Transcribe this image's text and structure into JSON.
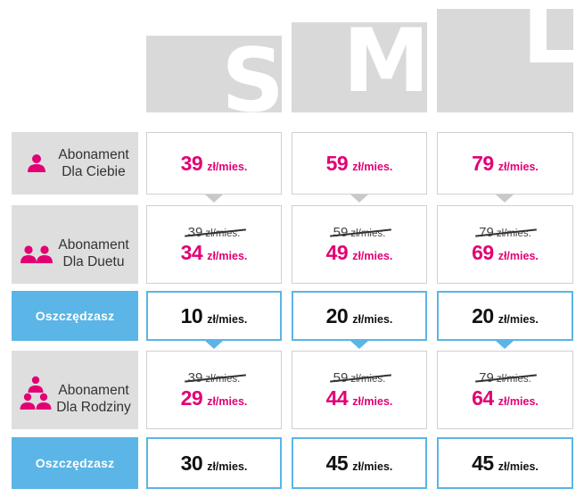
{
  "plans": [
    {
      "letter": "S"
    },
    {
      "letter": "M"
    },
    {
      "letter": "L"
    }
  ],
  "rows": {
    "dla_ciebie": {
      "label_line1": "Abonament",
      "label_line2": "Dla Ciebie",
      "icon": "single-person-icon",
      "prices": [
        {
          "value": "39",
          "unit": "zł/mies."
        },
        {
          "value": "59",
          "unit": "zł/mies."
        },
        {
          "value": "79",
          "unit": "zł/mies."
        }
      ]
    },
    "dla_duetu": {
      "label_line1": "Abonament",
      "label_line2": "Dla Duetu",
      "icon": "two-people-icon",
      "prices": [
        {
          "old": "39",
          "old_unit": "zł/mies.",
          "value": "34",
          "unit": "zł/mies."
        },
        {
          "old": "59",
          "old_unit": "zł/mies.",
          "value": "49",
          "unit": "zł/mies."
        },
        {
          "old": "79",
          "old_unit": "zł/mies.",
          "value": "69",
          "unit": "zł/mies."
        }
      ]
    },
    "oszczedzasz_duet": {
      "label": "Oszczędzasz",
      "values": [
        {
          "value": "10",
          "unit": "zł/mies."
        },
        {
          "value": "20",
          "unit": "zł/mies."
        },
        {
          "value": "20",
          "unit": "zł/mies."
        }
      ]
    },
    "dla_rodziny": {
      "label_line1": "Abonament",
      "label_line2": "Dla Rodziny",
      "icon": "family-icon",
      "prices": [
        {
          "old": "39",
          "old_unit": "zł/mies.",
          "value": "29",
          "unit": "zł/mies."
        },
        {
          "old": "59",
          "old_unit": "zł/mies.",
          "value": "44",
          "unit": "zł/mies."
        },
        {
          "old": "79",
          "old_unit": "zł/mies.",
          "value": "64",
          "unit": "zł/mies."
        }
      ]
    },
    "oszczedzasz_rodzina": {
      "label": "Oszczędzasz",
      "values": [
        {
          "value": "30",
          "unit": "zł/mies."
        },
        {
          "value": "45",
          "unit": "zł/mies."
        },
        {
          "value": "45",
          "unit": "zł/mies."
        }
      ]
    }
  },
  "colors": {
    "price": "#e20074",
    "savings_accent": "#5bb5e6",
    "panel_gray": "#d9d9d9"
  }
}
